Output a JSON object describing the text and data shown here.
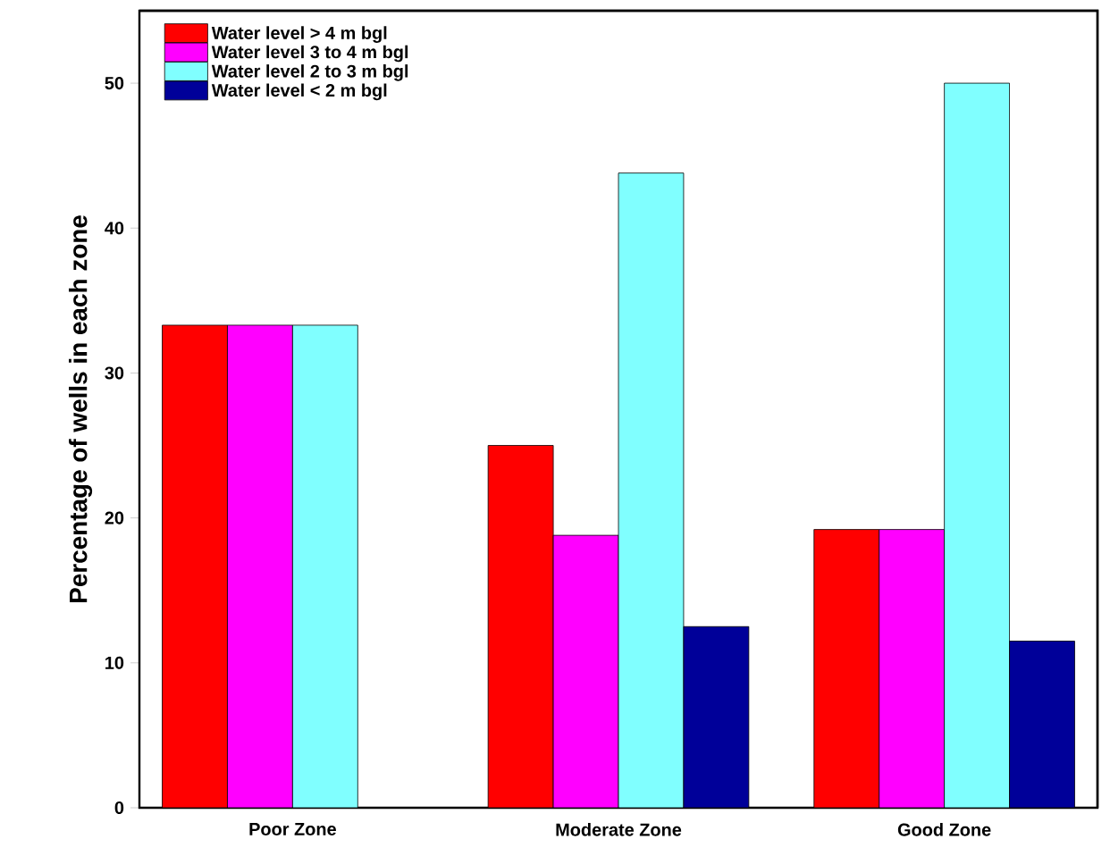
{
  "chart_data": {
    "type": "bar",
    "ylabel": "Percentage of wells in each zone",
    "categories": [
      "Poor Zone",
      "Moderate Zone",
      "Good Zone"
    ],
    "series": [
      {
        "name": "Water level > 4 m bgl",
        "color": "#ff0000",
        "values": [
          33.3,
          25,
          19.2
        ]
      },
      {
        "name": "Water level 3 to 4 m bgl",
        "color": "#ff00ff",
        "values": [
          33.3,
          18.8,
          19.2
        ]
      },
      {
        "name": "Water level 2 to 3 m bgl",
        "color": "#80ffff",
        "values": [
          33.3,
          43.8,
          50
        ]
      },
      {
        "name": "Water level < 2 m bgl",
        "color": "#000099",
        "values": [
          null,
          12.5,
          11.5
        ]
      }
    ],
    "ylim": [
      0,
      55
    ],
    "yticks": [
      0,
      10,
      20,
      30,
      40,
      50
    ],
    "grid": false,
    "legend": "top left"
  }
}
